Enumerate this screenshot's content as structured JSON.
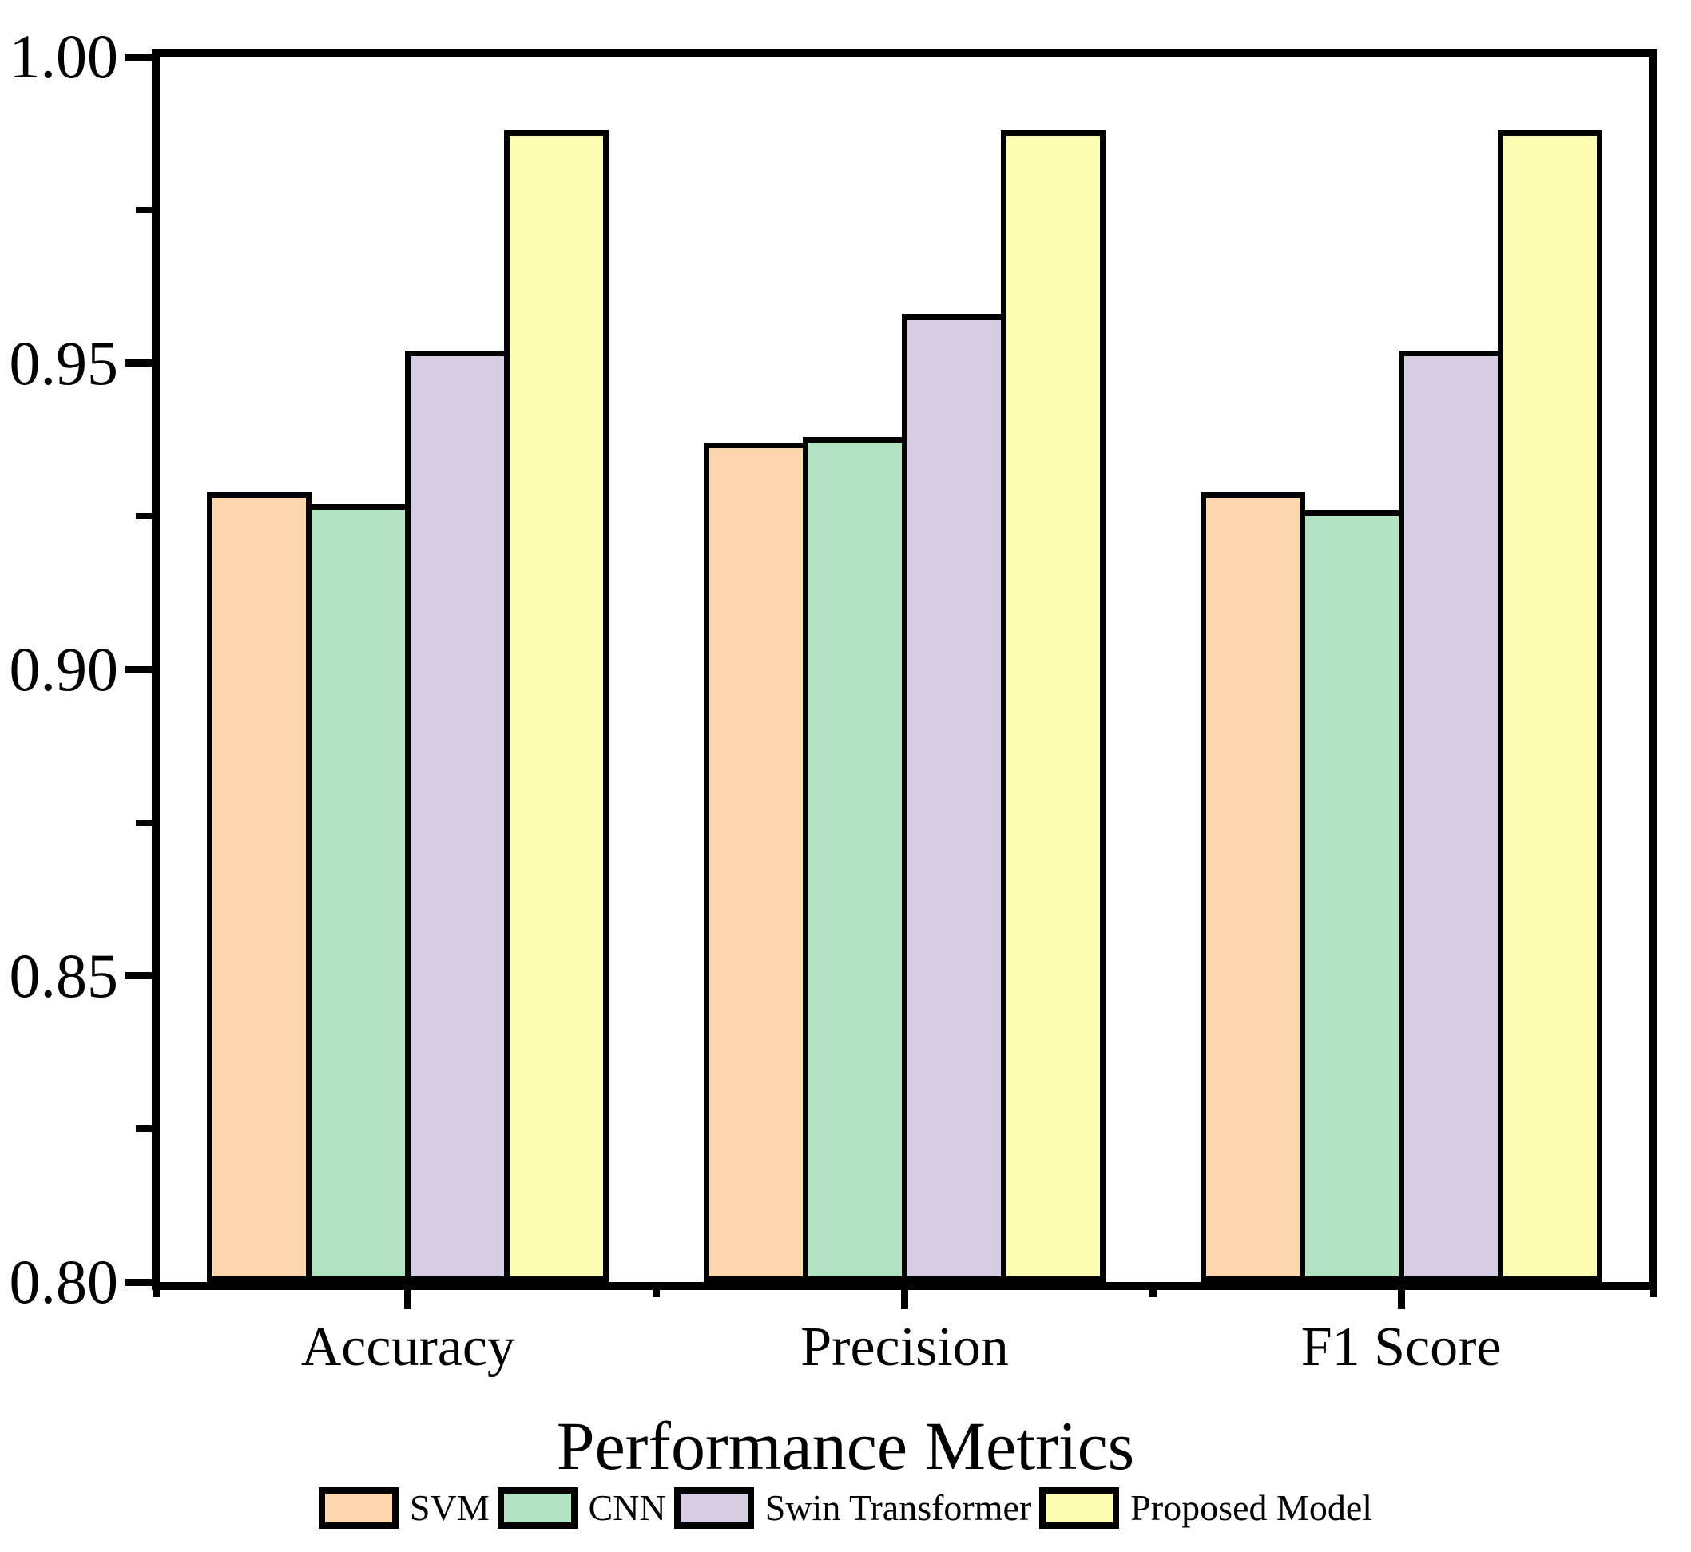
{
  "chart_data": {
    "type": "bar",
    "title": "",
    "xlabel": "Performance Metrics",
    "ylabel": "",
    "categories": [
      "Accuracy",
      "Precision",
      "F1 Score"
    ],
    "series": [
      {
        "name": "SVM",
        "color": "#FCD7AE",
        "values": [
          0.929,
          0.937,
          0.929
        ]
      },
      {
        "name": "CNN",
        "color": "#B4E3C3",
        "values": [
          0.927,
          0.938,
          0.926
        ]
      },
      {
        "name": "Swin Transformer",
        "color": "#D7CEE6",
        "values": [
          0.952,
          0.958,
          0.952
        ]
      },
      {
        "name": "Proposed Model",
        "color": "#FDFEB4",
        "values": [
          0.988,
          0.988,
          0.988
        ]
      }
    ],
    "ylim": [
      0.8,
      1.0
    ],
    "y_major_ticks": [
      1.0,
      0.95,
      0.9,
      0.85,
      0.8
    ],
    "y_major_tick_labels": [
      "1.00",
      "0.95",
      "0.90",
      "0.85",
      "0.80"
    ],
    "y_minor_ticks": [
      0.975,
      0.925,
      0.875,
      0.825
    ],
    "grid": false,
    "legend_position": "bottom",
    "axis_color": "#000000",
    "bar_edge_color": "#000000",
    "background_color": "#FFFFFF"
  }
}
